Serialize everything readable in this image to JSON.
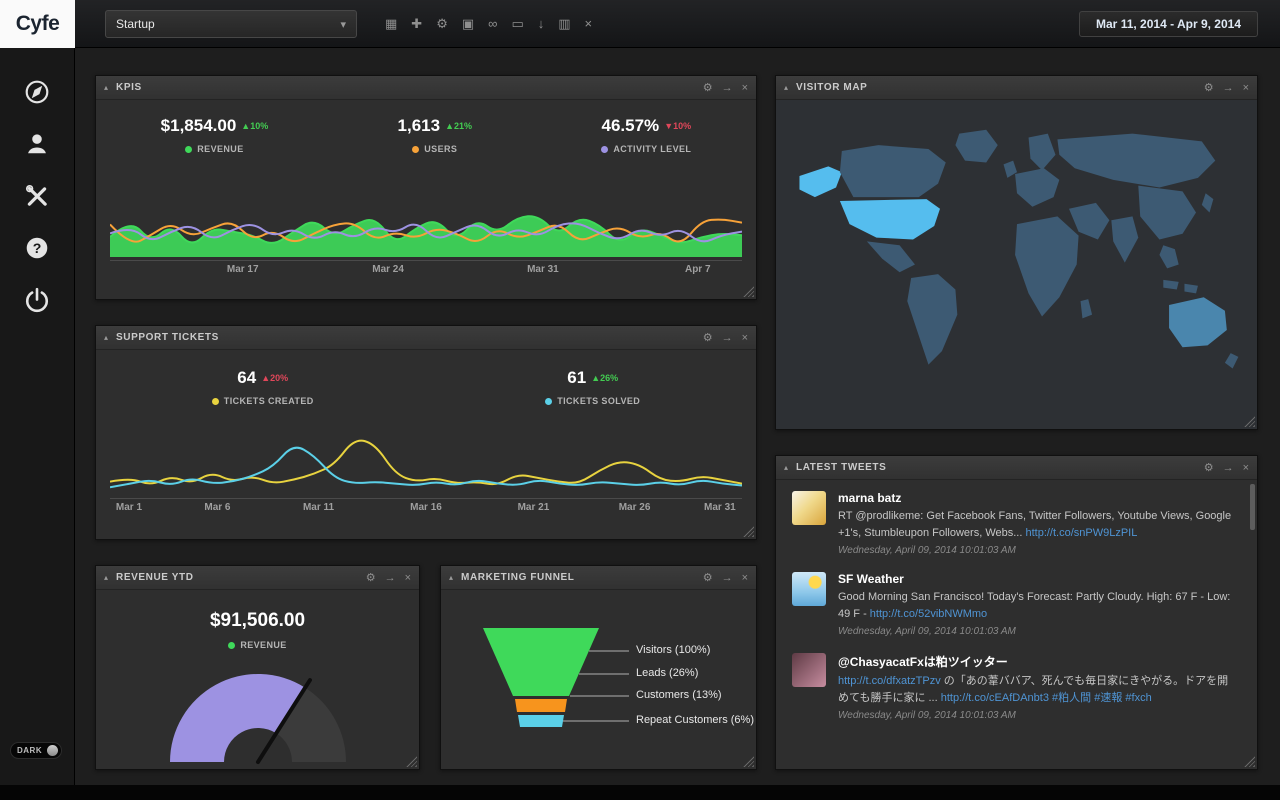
{
  "topbar": {
    "logo": "Cyfe",
    "dashboard_select": {
      "value": "Startup"
    },
    "toolbar_icons": [
      "grid",
      "add",
      "settings",
      "image",
      "link",
      "screen",
      "download",
      "clone",
      "close"
    ],
    "date_range": "Mar 11, 2014 - Apr 9, 2014"
  },
  "sidebar": {
    "items": [
      {
        "name": "dashboards"
      },
      {
        "name": "clients"
      },
      {
        "name": "settings"
      },
      {
        "name": "help"
      },
      {
        "name": "logout"
      }
    ],
    "dark_toggle": "DARK"
  },
  "widgets": {
    "kpis": {
      "title": "KPIS",
      "metrics": [
        {
          "value": "$1,854.00",
          "delta": "10%",
          "direction": "up",
          "tone": "good",
          "label": "REVENUE",
          "color": "#3fd95a"
        },
        {
          "value": "1,613",
          "delta": "21%",
          "direction": "up",
          "tone": "good",
          "label": "USERS",
          "color": "#f7a239"
        },
        {
          "value": "46.57%",
          "delta": "10%",
          "direction": "down",
          "tone": "bad",
          "label": "ACTIVITY LEVEL",
          "color": "#9d92e2"
        }
      ],
      "chart": {
        "type": "area",
        "x_labels": [
          "Mar 17",
          "Mar 24",
          "Mar 31",
          "Apr 7"
        ],
        "series": [
          {
            "name": "REVENUE",
            "color": "#3fd95a",
            "fill": true,
            "values": [
              20,
              40,
              14,
              34,
              8,
              30,
              26,
              22,
              10,
              26,
              40,
              20,
              34,
              42,
              12,
              30,
              40,
              16,
              40,
              24,
              42,
              44,
              22,
              42,
              34,
              12,
              30,
              22,
              12,
              20,
              24,
              22
            ]
          },
          {
            "name": "USERS",
            "color": "#f7a239",
            "fill": false,
            "values": [
              34,
              10,
              22,
              36,
              20,
              30,
              38,
              16,
              28,
              12,
              24,
              34,
              36,
              16,
              26,
              18,
              30,
              24,
              12,
              30,
              18,
              26,
              36,
              14,
              24,
              32,
              18,
              26,
              10,
              38,
              40,
              36
            ]
          },
          {
            "name": "ACTIVITY LEVEL",
            "color": "#9d92e2",
            "fill": false,
            "values": [
              24,
              32,
              14,
              26,
              34,
              16,
              28,
              36,
              20,
              30,
              16,
              28,
              18,
              32,
              24,
              38,
              16,
              26,
              36,
              18,
              30,
              20,
              34,
              36,
              24,
              16,
              30,
              20,
              30,
              12,
              22,
              26
            ]
          }
        ]
      }
    },
    "support_tickets": {
      "title": "SUPPORT TICKETS",
      "metrics": [
        {
          "value": "64",
          "delta": "20%",
          "direction": "up",
          "tone": "bad",
          "label": "TICKETS CREATED",
          "color": "#e8d33f"
        },
        {
          "value": "61",
          "delta": "26%",
          "direction": "up",
          "tone": "good",
          "label": "TICKETS SOLVED",
          "color": "#5bd0e8"
        }
      ],
      "chart": {
        "type": "line",
        "x_labels": [
          "Mar 1",
          "Mar 6",
          "Mar 11",
          "Mar 16",
          "Mar 21",
          "Mar 26",
          "Mar 31"
        ],
        "series": [
          {
            "name": "TICKETS CREATED",
            "color": "#e8d33f",
            "fill": false,
            "values": [
              12,
              16,
              8,
              18,
              10,
              22,
              12,
              18,
              10,
              14,
              20,
              30,
              58,
              52,
              20,
              12,
              16,
              10,
              12,
              8,
              20,
              16,
              12,
              10,
              24,
              34,
              30,
              14,
              12,
              18,
              14,
              10
            ]
          },
          {
            "name": "TICKETS SOLVED",
            "color": "#5bd0e8",
            "fill": false,
            "values": [
              6,
              10,
              14,
              8,
              16,
              10,
              12,
              18,
              28,
              52,
              40,
              16,
              10,
              12,
              10,
              8,
              12,
              8,
              14,
              10,
              8,
              14,
              10,
              8,
              12,
              10,
              8,
              12,
              8,
              14,
              10,
              8
            ]
          }
        ]
      }
    },
    "revenue_ytd": {
      "title": "REVENUE YTD",
      "value": "$91,506.00",
      "label": "REVENUE",
      "color": "#3fd95a",
      "gauge": {
        "percent": 0.68,
        "fill_color": "#9d92e2",
        "rest_color": "#3b3b3b",
        "needle_color": "#0e0e0e"
      }
    },
    "marketing_funnel": {
      "title": "MARKETING FUNNEL",
      "stages": [
        {
          "label": "Visitors (100%)",
          "color": "#3fd95a"
        },
        {
          "label": "Leads (26%)",
          "color": "#3fd95a"
        },
        {
          "label": "Customers (13%)",
          "color": "#f7941d"
        },
        {
          "label": "Repeat Customers (6%)",
          "color": "#5bd0e8"
        }
      ]
    },
    "visitor_map": {
      "title": "VISITOR MAP",
      "land_color": "#3d5a73",
      "highlight_color": "#55bdee",
      "secondary_color": "#4a86ad"
    },
    "latest_tweets": {
      "title": "LATEST TWEETS",
      "tweets": [
        {
          "name": "marna batz",
          "body": [
            {
              "t": "text",
              "v": "RT @prodlikeme: Get Facebook Fans, Twitter Followers, Youtube Views, Google +1's, Stumbleupon Followers, Webs... "
            },
            {
              "t": "link",
              "v": "http://t.co/snPW9LzPIL"
            }
          ],
          "time": "Wednesday, April 09, 2014 10:01:03 AM"
        },
        {
          "name": "SF Weather",
          "body": [
            {
              "t": "text",
              "v": "Good Morning San Francisco! Today's Forecast: Partly Cloudy. High: 67 F - Low: 49 F - "
            },
            {
              "t": "link",
              "v": "http://t.co/52vibNWMmo"
            }
          ],
          "time": "Wednesday, April 09, 2014 10:01:03 AM"
        },
        {
          "name": "@ChasyacatFxは粕ツイッター",
          "body": [
            {
              "t": "link",
              "v": "http://t.co/dfxatzTPzv"
            },
            {
              "t": "text",
              "v": " の「あの葦ババア、死んでも毎日家にきやがる。ドアを開めても勝手に家に ... "
            },
            {
              "t": "link",
              "v": "http://t.co/cEAfDAnbt3"
            },
            {
              "t": "text",
              "v": " "
            },
            {
              "t": "link",
              "v": "#粕人間"
            },
            {
              "t": "text",
              "v": " "
            },
            {
              "t": "link",
              "v": "#速報"
            },
            {
              "t": "text",
              "v": " "
            },
            {
              "t": "link",
              "v": "#fxch"
            }
          ],
          "time": "Wednesday, April 09, 2014 10:01:03 AM"
        }
      ]
    }
  }
}
